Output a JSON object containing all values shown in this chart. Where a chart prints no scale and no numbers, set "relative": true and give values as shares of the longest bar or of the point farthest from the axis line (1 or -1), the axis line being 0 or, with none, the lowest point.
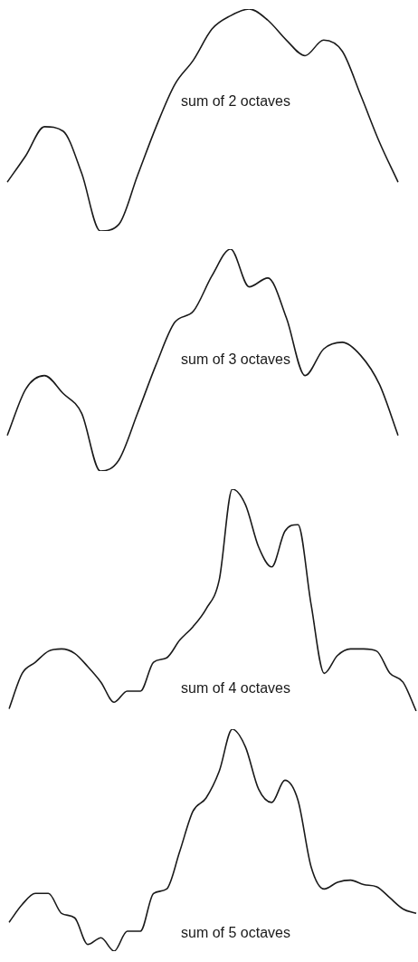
{
  "chart_data": [
    {
      "type": "line",
      "title": "sum of 2 octaves",
      "relative": true,
      "color": "#1a1a1a",
      "categories": [
        null,
        null,
        null,
        null,
        null,
        null,
        null,
        null,
        null,
        null,
        null,
        null,
        null,
        null,
        null,
        null,
        null,
        null,
        null,
        null,
        null,
        null
      ],
      "values": [
        0.22,
        0.34,
        0.47,
        0.45,
        0.26,
        0,
        0.03,
        0.25,
        0.47,
        0.66,
        0.77,
        0.91,
        0.97,
        1,
        0.95,
        0.86,
        0.79,
        0.86,
        0.81,
        0.61,
        0.4,
        0.22
      ]
    },
    {
      "type": "line",
      "title": "sum of 3 octaves",
      "relative": true,
      "color": "#1a1a1a",
      "categories": [
        null,
        null,
        null,
        null,
        null,
        null,
        null,
        null,
        null,
        null,
        null,
        null,
        null,
        null,
        null,
        null,
        null,
        null,
        null,
        null,
        null,
        null
      ],
      "values": [
        0.16,
        0.37,
        0.43,
        0.35,
        0.26,
        0,
        0.05,
        0.26,
        0.48,
        0.67,
        0.72,
        0.88,
        1,
        0.83,
        0.87,
        0.69,
        0.43,
        0.55,
        0.58,
        0.52,
        0.39,
        0.16
      ]
    },
    {
      "type": "line",
      "title": "sum of 4 octaves",
      "relative": true,
      "color": "#1a1a1a",
      "categories": [
        null,
        null,
        null,
        null,
        null,
        null,
        null,
        null,
        null,
        null,
        null,
        null,
        null,
        null,
        null,
        null,
        null,
        null,
        null,
        null,
        null,
        null,
        null,
        null,
        null,
        null,
        null,
        null,
        null,
        null,
        null,
        null
      ],
      "values": [
        0.01,
        0.17,
        0.22,
        0.27,
        0.28,
        0.26,
        0.2,
        0.13,
        0.04,
        0.09,
        0.09,
        0.22,
        0.24,
        0.32,
        0.38,
        0.46,
        0.59,
        1,
        0.93,
        0.74,
        0.65,
        0.81,
        0.84,
        0.48,
        0.17,
        0.25,
        0.28,
        0.28,
        0.27,
        0.17,
        0.13,
        0
      ]
    },
    {
      "type": "line",
      "title": "sum of 5 octaves",
      "relative": true,
      "color": "#1a1a1a",
      "categories": [
        null,
        null,
        null,
        null,
        null,
        null,
        null,
        null,
        null,
        null,
        null,
        null,
        null,
        null,
        null,
        null,
        null,
        null,
        null,
        null,
        null,
        null,
        null,
        null,
        null,
        null,
        null,
        null,
        null,
        null,
        null,
        null
      ],
      "values": [
        0.13,
        0.21,
        0.26,
        0.26,
        0.17,
        0.15,
        0.03,
        0.06,
        0,
        0.09,
        0.09,
        0.26,
        0.28,
        0.45,
        0.63,
        0.69,
        0.81,
        1,
        0.92,
        0.73,
        0.67,
        0.77,
        0.68,
        0.38,
        0.28,
        0.31,
        0.32,
        0.3,
        0.29,
        0.24,
        0.19,
        0.17
      ]
    }
  ]
}
